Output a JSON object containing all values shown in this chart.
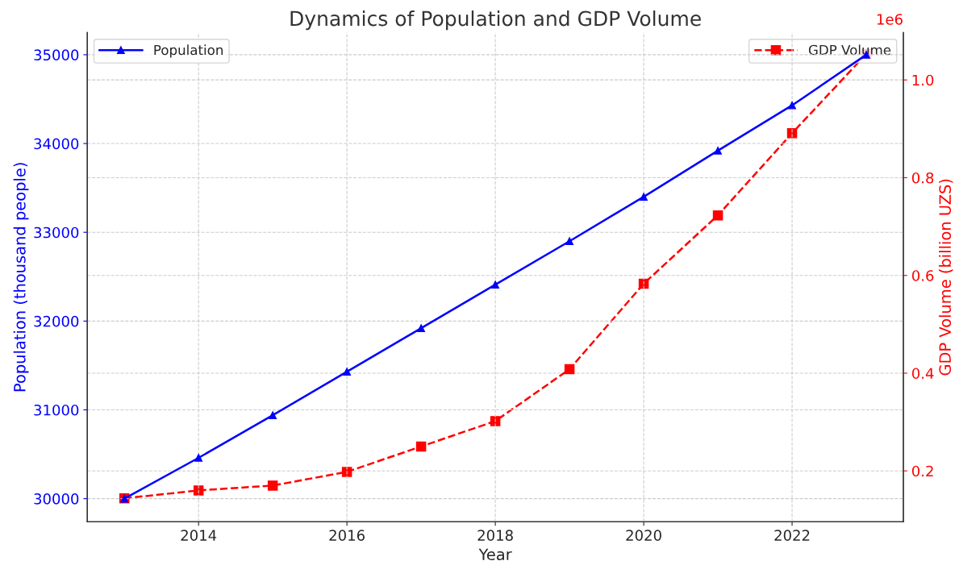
{
  "chart_data": {
    "type": "line",
    "title": "Dynamics of Population and GDP Volume",
    "xlabel": "Year",
    "ylabel": "Population (thousand people)",
    "y2label": "GDP Volume (billion UZS)",
    "x": [
      2013,
      2014,
      2015,
      2016,
      2017,
      2018,
      2019,
      2020,
      2021,
      2022,
      2023
    ],
    "series": [
      {
        "name": "Population",
        "color": "#0000ff",
        "marker": "triangle",
        "line_style": "solid",
        "values": [
          30000,
          30460,
          30940,
          31430,
          31920,
          32410,
          32900,
          33400,
          33920,
          34430,
          35000
        ]
      },
      {
        "name": "GDP Volume",
        "color": "#ff0000",
        "marker": "square",
        "line_style": "dashed",
        "axis": "y2",
        "values": [
          0.144,
          0.16,
          0.17,
          0.198,
          0.25,
          0.302,
          0.408,
          0.583,
          0.723,
          0.891,
          1.053
        ]
      }
    ],
    "xlim": [
      2012.5,
      2023.5
    ],
    "xticks": [
      2014,
      2016,
      2018,
      2020,
      2022
    ],
    "ylim": [
      29740,
      35250
    ],
    "yticks": [
      30000,
      31000,
      32000,
      33000,
      34000,
      35000
    ],
    "y2lim": [
      0.096,
      1.097
    ],
    "y2ticks": [
      0.2,
      0.4,
      0.6,
      0.8,
      {
        "value": 1,
        "label": "1.0"
      }
    ],
    "annotations": [
      "1e6"
    ],
    "legend": "top left",
    "grid": true
  }
}
